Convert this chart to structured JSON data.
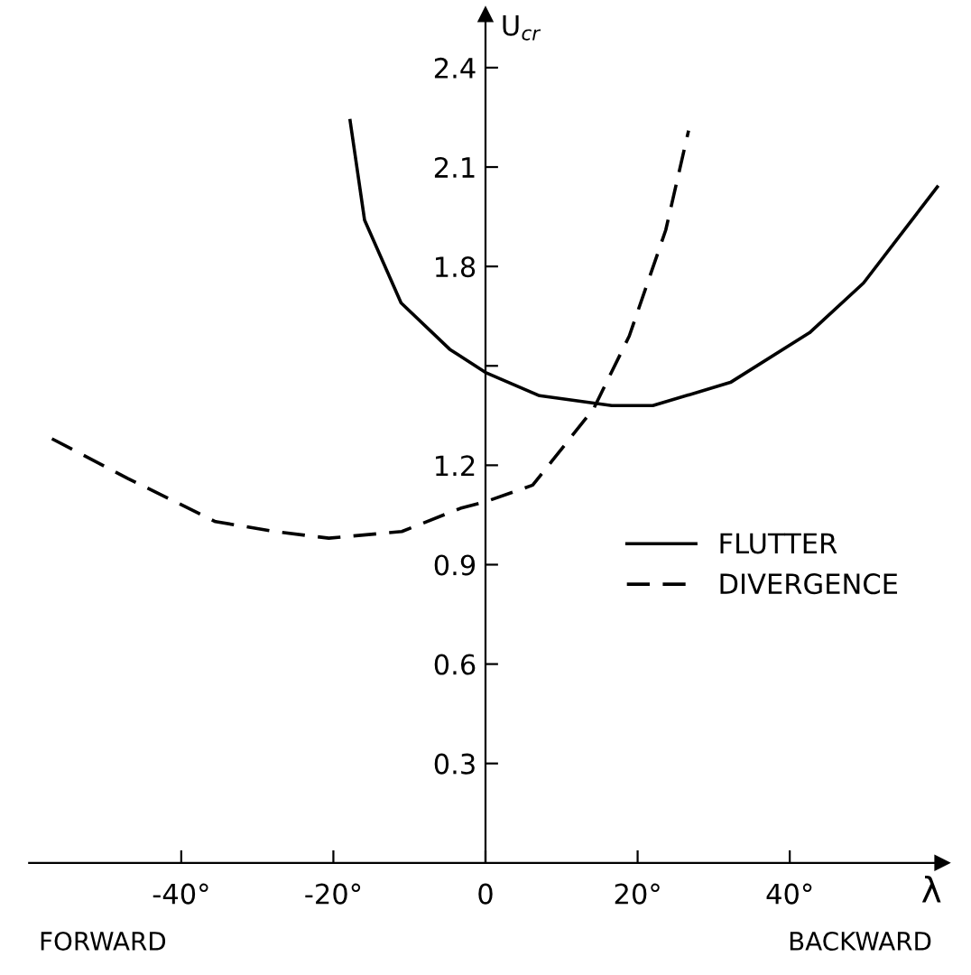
{
  "chart_data": {
    "type": "line",
    "xlabel": "λ",
    "ylabel": "U$_{cr}$",
    "xlim": [
      -60,
      60
    ],
    "ylim": [
      0,
      2.56
    ],
    "xticks": [
      {
        "value": -40,
        "label": "-40°"
      },
      {
        "value": -20,
        "label": "-20°"
      },
      0,
      {
        "value": 20,
        "label": "20°"
      },
      {
        "value": 40,
        "label": "40°"
      }
    ],
    "yticks": [
      0.3,
      0.6,
      0.9,
      1.2,
      {
        "value": 1.5,
        "label": null
      },
      1.8,
      2.1,
      2.4
    ],
    "grid": false,
    "legend": "right",
    "marker": "none",
    "series": [
      {
        "name": "FLUTTER",
        "color": "#000000",
        "line_style": "solid",
        "x": [
          -17.8,
          -15.9,
          -11.1,
          -4.7,
          0,
          7.1,
          16.6,
          22,
          32.2,
          42.6,
          49.7,
          59.4
        ],
        "values": [
          2.24,
          1.94,
          1.69,
          1.55,
          1.48,
          1.41,
          1.38,
          1.38,
          1.45,
          1.6,
          1.75,
          2.04
        ]
      },
      {
        "name": "DIVERGENCE",
        "color": "#000000",
        "line_style": "dashed",
        "x": [
          -57,
          -47,
          -35.5,
          -27.7,
          -20.6,
          -11,
          -3.3,
          0,
          6.2,
          14.2,
          18.9,
          23.7,
          26.7
        ],
        "values": [
          1.28,
          1.16,
          1.03,
          1.0,
          0.98,
          1.0,
          1.07,
          1.09,
          1.14,
          1.37,
          1.59,
          1.91,
          2.21
        ]
      }
    ],
    "annotations": [
      "FORWARD",
      "BACKWARD"
    ]
  }
}
